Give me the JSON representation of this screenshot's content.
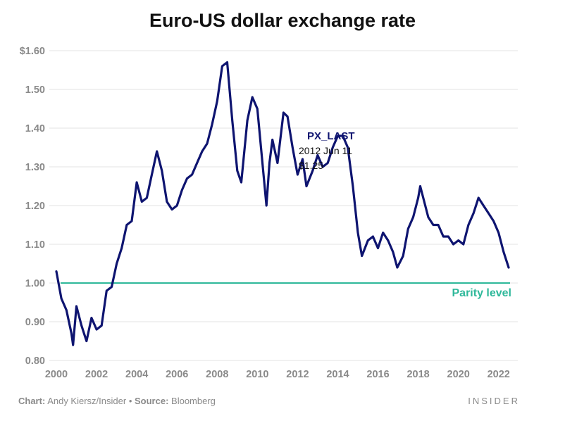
{
  "title": "Euro-US dollar exchange rate",
  "footer": {
    "chart_label": "Chart:",
    "chart_value": "Andy Kiersz/Insider",
    "bullet": "•",
    "source_label": "Source:",
    "source_value": "Bloomberg",
    "brand": "INSIDER"
  },
  "colors": {
    "series": "#0e1470",
    "parity": "#2eb89a",
    "grid": "#e3e3e3",
    "tick": "#8a8a8a"
  },
  "chart_data": {
    "type": "line",
    "title": "Euro-US dollar exchange rate",
    "xlabel": "",
    "ylabel": "",
    "xlim": [
      2000,
      2022.5
    ],
    "ylim": [
      0.8,
      1.6
    ],
    "x_ticks": [
      "2000",
      "2002",
      "2004",
      "2006",
      "2008",
      "2010",
      "2012",
      "2014",
      "2016",
      "2018",
      "2020",
      "2022"
    ],
    "y_ticks": [
      "$1.60",
      "1.50",
      "1.40",
      "1.30",
      "1.20",
      "1.10",
      "1.00",
      "0.90",
      "0.80"
    ],
    "grid": "horizontal",
    "reference_line": {
      "y": 1.0,
      "label": "Parity level"
    },
    "tooltip": {
      "series": "PX_LAST",
      "date": "2012 Jun 11",
      "value": "$1.25"
    },
    "series": [
      {
        "name": "PX_LAST",
        "x": [
          2000.0,
          2000.25,
          2000.5,
          2000.75,
          2000.83,
          2001.0,
          2001.25,
          2001.5,
          2001.75,
          2002.0,
          2002.25,
          2002.5,
          2002.75,
          2003.0,
          2003.25,
          2003.5,
          2003.75,
          2004.0,
          2004.25,
          2004.5,
          2004.75,
          2005.0,
          2005.25,
          2005.5,
          2005.75,
          2006.0,
          2006.25,
          2006.5,
          2006.75,
          2007.0,
          2007.25,
          2007.5,
          2007.75,
          2008.0,
          2008.25,
          2008.5,
          2008.75,
          2009.0,
          2009.2,
          2009.5,
          2009.75,
          2010.0,
          2010.45,
          2010.6,
          2010.75,
          2011.0,
          2011.3,
          2011.5,
          2011.75,
          2012.0,
          2012.25,
          2012.44,
          2012.75,
          2013.0,
          2013.25,
          2013.5,
          2013.75,
          2014.0,
          2014.25,
          2014.5,
          2014.75,
          2015.0,
          2015.2,
          2015.5,
          2015.75,
          2016.0,
          2016.25,
          2016.5,
          2016.75,
          2016.96,
          2017.25,
          2017.5,
          2017.75,
          2018.0,
          2018.1,
          2018.5,
          2018.75,
          2019.0,
          2019.25,
          2019.5,
          2019.75,
          2020.0,
          2020.25,
          2020.5,
          2020.75,
          2021.0,
          2021.25,
          2021.5,
          2021.75,
          2022.0,
          2022.25,
          2022.5
        ],
        "values": [
          1.03,
          0.96,
          0.93,
          0.87,
          0.84,
          0.94,
          0.89,
          0.85,
          0.91,
          0.88,
          0.89,
          0.98,
          0.99,
          1.05,
          1.09,
          1.15,
          1.16,
          1.26,
          1.21,
          1.22,
          1.28,
          1.34,
          1.29,
          1.21,
          1.19,
          1.2,
          1.24,
          1.27,
          1.28,
          1.31,
          1.34,
          1.36,
          1.41,
          1.47,
          1.56,
          1.57,
          1.42,
          1.29,
          1.26,
          1.42,
          1.48,
          1.45,
          1.2,
          1.31,
          1.37,
          1.31,
          1.44,
          1.43,
          1.35,
          1.28,
          1.32,
          1.25,
          1.29,
          1.33,
          1.3,
          1.31,
          1.35,
          1.38,
          1.38,
          1.35,
          1.25,
          1.13,
          1.07,
          1.11,
          1.12,
          1.09,
          1.13,
          1.11,
          1.08,
          1.04,
          1.07,
          1.14,
          1.17,
          1.22,
          1.25,
          1.17,
          1.15,
          1.15,
          1.12,
          1.12,
          1.1,
          1.11,
          1.1,
          1.15,
          1.18,
          1.22,
          1.2,
          1.18,
          1.16,
          1.13,
          1.08,
          1.04
        ]
      }
    ]
  }
}
